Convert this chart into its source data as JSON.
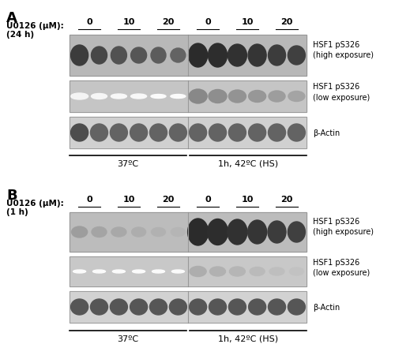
{
  "figure_width": 5.0,
  "figure_height": 4.56,
  "dpi": 100,
  "bg_color": "#ffffff",
  "panel_A": {
    "label": "A",
    "pretreat_label": "U0126 (μM):",
    "pretreat_time": "(24 h)",
    "blot1_label": "HSF1 pS326\n(high exposure)",
    "blot2_label": "HSF1 pS326\n(low exposure)",
    "blot3_label": "β-Actin",
    "condition1_label": "37ºC",
    "condition2_label": "1h, 42ºC (HS)",
    "conc_37": [
      "0",
      "10",
      "20"
    ],
    "conc_hs": [
      "0",
      "10",
      "20"
    ]
  },
  "panel_B": {
    "label": "B",
    "pretreat_label": "U0126 (μM):",
    "pretreat_time": "(1 h)",
    "blot1_label": "HSF1 pS326\n(high exposure)",
    "blot2_label": "HSF1 pS326\n(low exposure)",
    "blot3_label": "β-Actin",
    "condition1_label": "37ºC",
    "condition2_label": "1h, 42ºC (HS)",
    "conc_37": [
      "0",
      "10",
      "20"
    ],
    "conc_hs": [
      "0",
      "10",
      "20"
    ]
  }
}
